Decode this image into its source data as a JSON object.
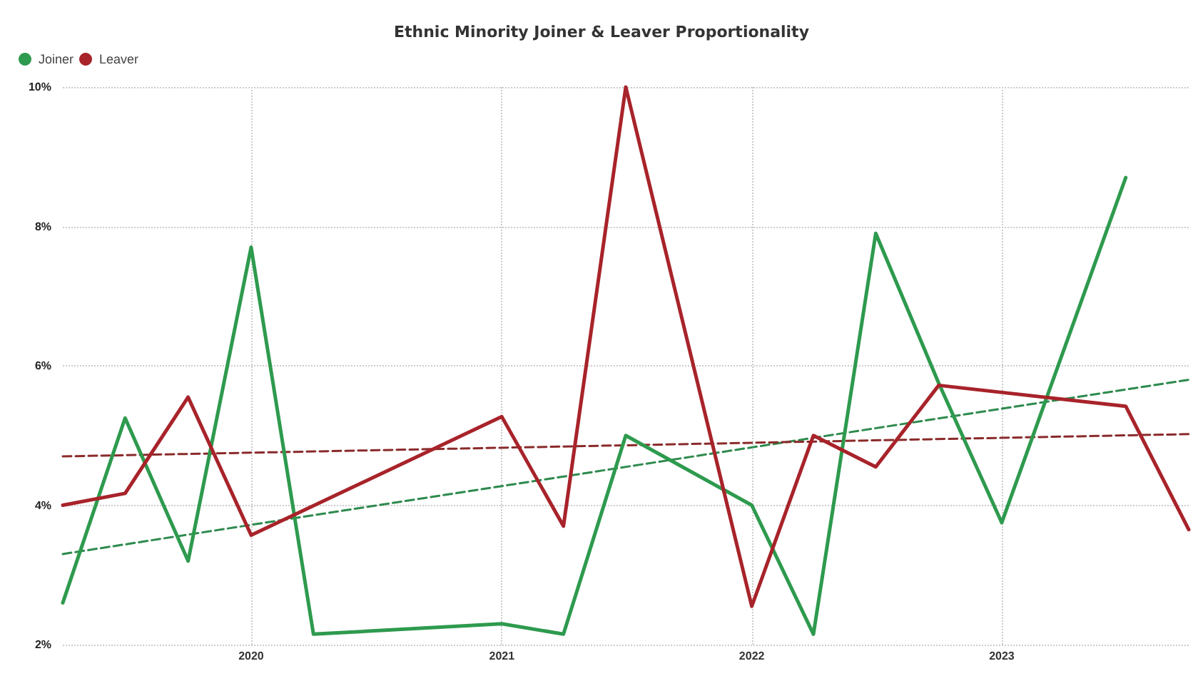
{
  "chart_data": {
    "type": "line",
    "title": "Ethnic Minority Joiner & Leaver Proportionality",
    "xlim": [
      "2019-04",
      "2023-10"
    ],
    "xticks": [
      "2020",
      "2021",
      "2022",
      "2023"
    ],
    "ylim": [
      2,
      10
    ],
    "yticks": [
      {
        "value": 2,
        "label": "2%"
      },
      {
        "value": 4,
        "label": "4%"
      },
      {
        "value": 6,
        "label": "6%"
      },
      {
        "value": 8,
        "label": "8%"
      },
      {
        "value": 10,
        "label": "10%"
      }
    ],
    "grid": true,
    "legend": "top left",
    "marker": "none",
    "line_style": "solid",
    "series": [
      {
        "name": "Joiner",
        "color": "#2e9a4e",
        "x": [
          "2019-04",
          "2019-07",
          "2019-10",
          "2020-01",
          "2020-04",
          "2021-01",
          "2021-04",
          "2021-07",
          "2022-01",
          "2022-04",
          "2022-07",
          "2022-10",
          "2023-01",
          "2023-07"
        ],
        "values": [
          2.6,
          5.25,
          3.2,
          7.7,
          2.15,
          2.3,
          2.15,
          5.0,
          4.0,
          2.15,
          7.9,
          5.75,
          3.75,
          8.7
        ]
      },
      {
        "name": "Leaver",
        "color": "#a8232a",
        "x": [
          "2019-04",
          "2019-07",
          "2019-10",
          "2020-01",
          "2021-01",
          "2021-04",
          "2021-07",
          "2022-01",
          "2022-04",
          "2022-07",
          "2022-10",
          "2023-07",
          "2023-10"
        ],
        "values": [
          4.0,
          4.17,
          5.55,
          3.57,
          5.27,
          3.7,
          10.0,
          2.55,
          5.0,
          4.55,
          5.72,
          5.42,
          3.65
        ]
      },
      {
        "color": "#2e8a4e",
        "line_style": "dashed",
        "x": [
          "2019-04",
          "2023-10"
        ],
        "values": [
          3.3,
          5.8
        ]
      },
      {
        "color": "#8a2a2a",
        "line_style": "dashed",
        "x": [
          "2019-04",
          "2023-10"
        ],
        "values": [
          4.7,
          5.02
        ]
      }
    ]
  }
}
